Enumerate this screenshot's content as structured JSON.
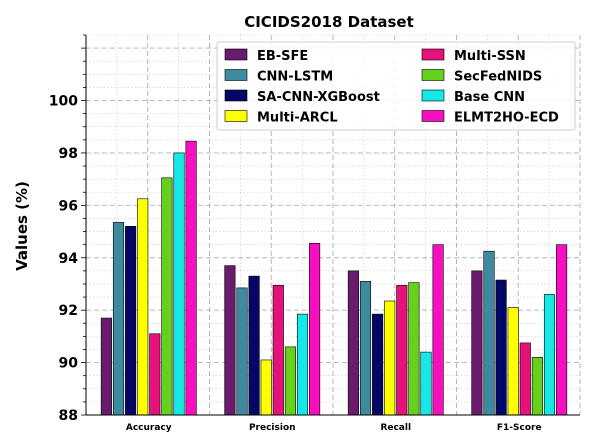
{
  "chart_data": {
    "type": "bar",
    "title": "CICIDS2018 Dataset",
    "xlabel": "",
    "ylabel": "Values (%)",
    "ylim": [
      88,
      102.5
    ],
    "yticks": [
      88,
      90,
      92,
      94,
      96,
      98,
      100
    ],
    "grid": true,
    "legend_position": "top-right",
    "categories": [
      "Accuracy",
      "Precision",
      "Recall",
      "F1-Score"
    ],
    "series": [
      {
        "name": "EB-SFE",
        "color": "#6a1b6e",
        "values": [
          91.7,
          93.7,
          93.5,
          93.5
        ]
      },
      {
        "name": "CNN-LSTM",
        "color": "#3f8a9e",
        "values": [
          95.35,
          92.85,
          93.1,
          94.25
        ]
      },
      {
        "name": "SA-CNN-XGBoost",
        "color": "#050766",
        "values": [
          95.2,
          93.3,
          91.85,
          93.15
        ]
      },
      {
        "name": "Multi-ARCL",
        "color": "#ffff00",
        "values": [
          96.25,
          90.1,
          92.35,
          92.1
        ]
      },
      {
        "name": "Multi-SSN",
        "color": "#e6127a",
        "values": [
          91.1,
          92.95,
          92.95,
          90.75
        ]
      },
      {
        "name": "SecFedNIDS",
        "color": "#66d11c",
        "values": [
          97.05,
          90.6,
          93.05,
          90.2
        ]
      },
      {
        "name": "Base CNN",
        "color": "#16e8e8",
        "values": [
          98.0,
          91.85,
          90.4,
          92.6
        ]
      },
      {
        "name": "ELMT2HO-ECD",
        "color": "#f70fc0",
        "values": [
          98.45,
          94.55,
          94.5,
          94.5
        ]
      }
    ]
  }
}
